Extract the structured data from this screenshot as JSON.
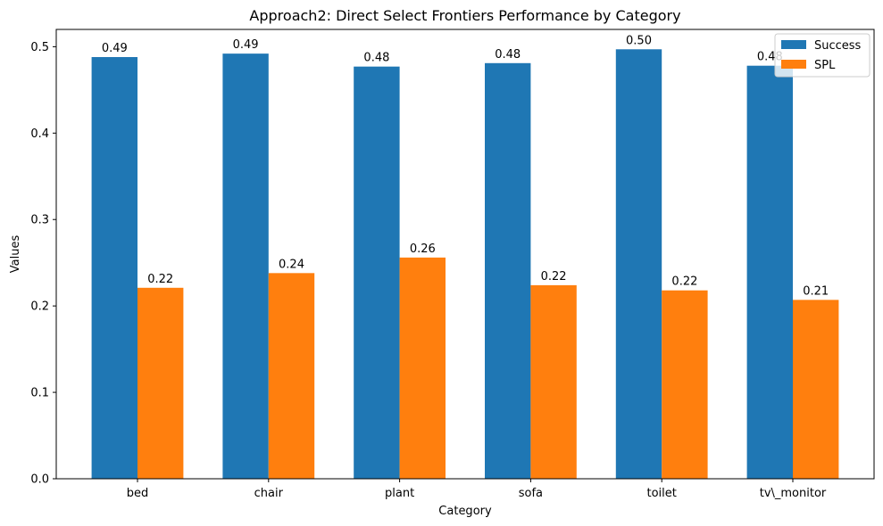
{
  "chart_data": {
    "type": "bar",
    "title": "Approach2: Direct Select Frontiers Performance by Category",
    "xlabel": "Category",
    "ylabel": "Values",
    "ylim": [
      0,
      0.52
    ],
    "yticks": [
      0.0,
      0.1,
      0.2,
      0.3,
      0.4,
      0.5
    ],
    "ytick_labels": [
      "0.0",
      "0.1",
      "0.2",
      "0.3",
      "0.4",
      "0.5"
    ],
    "grid": false,
    "legend_position": "top-right",
    "categories": [
      "bed",
      "chair",
      "plant",
      "sofa",
      "toilet",
      "tv\\_monitor"
    ],
    "series": [
      {
        "name": "Success",
        "color": "#1f77b4",
        "values": [
          0.488,
          0.492,
          0.477,
          0.481,
          0.497,
          0.478
        ],
        "labels": [
          "0.49",
          "0.49",
          "0.48",
          "0.48",
          "0.50",
          "0.48"
        ]
      },
      {
        "name": "SPL",
        "color": "#ff7f0e",
        "values": [
          0.221,
          0.238,
          0.256,
          0.224,
          0.218,
          0.207
        ],
        "labels": [
          "0.22",
          "0.24",
          "0.26",
          "0.22",
          "0.22",
          "0.21"
        ]
      }
    ]
  }
}
